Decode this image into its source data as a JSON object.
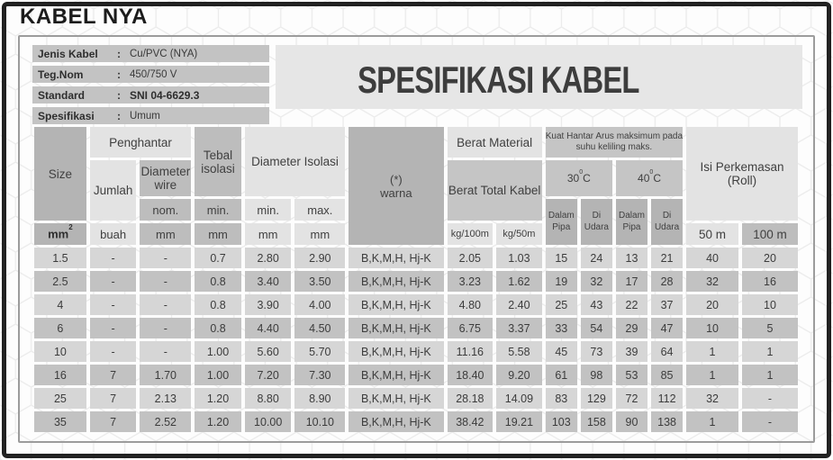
{
  "title": "KABEL NYA",
  "spec_title": "SPESIFIKASI KABEL",
  "info_panel": {
    "colon": ":",
    "rows": [
      {
        "label": "Jenis Kabel",
        "value": "Cu/PVC (NYA)"
      },
      {
        "label": "Teg.Nom",
        "value": "450/750 V"
      },
      {
        "label": "Standard",
        "value": "SNI 04-6629.3"
      },
      {
        "label": "Spesifikasi",
        "value": "Umum"
      }
    ]
  },
  "table": {
    "header": {
      "size": "Size",
      "penghantar": "Penghantar",
      "jumlah": "Jumlah",
      "diameter_wire": "Diameter wire",
      "nom": "nom.",
      "tebal_isolasi": "Tebal isolasi",
      "min_tebal": "min.",
      "diameter_isolasi": "Diameter Isolasi",
      "min_diameter": "min.",
      "max_diameter": "max.",
      "warna_mark": "(*)",
      "warna_label": "warna",
      "berat_material": "Berat Material",
      "berat_total_kabel": "Berat Total Kabel",
      "kuat_hantar_arus": "Kuat Hantar Arus maksimum pada suhu keliling maks.",
      "temp_30": "30",
      "temp_40": "40",
      "deg_mark": "0",
      "deg_unit": "C",
      "dalam_pipa": "Dalam Pipa",
      "di_udara": "Di Udara",
      "isi_perkemasan": "Isi Perkemasan (Roll)"
    },
    "units": {
      "size_base": "mm",
      "size_sup": "2",
      "jumlah": "buah",
      "mm": "mm",
      "kg_100": "kg/100m",
      "kg_50": "kg/50m",
      "roll_50": "50 m",
      "roll_100": "100 m"
    },
    "rows": [
      [
        "1.5",
        "-",
        "-",
        "0.7",
        "2.80",
        "2.90",
        "B,K,M,H, Hj-K",
        "2.05",
        "1.03",
        "15",
        "24",
        "13",
        "21",
        "40",
        "20"
      ],
      [
        "2.5",
        "-",
        "-",
        "0.8",
        "3.40",
        "3.50",
        "B,K,M,H, Hj-K",
        "3.23",
        "1.62",
        "19",
        "32",
        "17",
        "28",
        "32",
        "16"
      ],
      [
        "4",
        "-",
        "-",
        "0.8",
        "3.90",
        "4.00",
        "B,K,M,H, Hj-K",
        "4.80",
        "2.40",
        "25",
        "43",
        "22",
        "37",
        "20",
        "10"
      ],
      [
        "6",
        "-",
        "-",
        "0.8",
        "4.40",
        "4.50",
        "B,K,M,H, Hj-K",
        "6.75",
        "3.37",
        "33",
        "54",
        "29",
        "47",
        "10",
        "5"
      ],
      [
        "10",
        "-",
        "-",
        "1.00",
        "5.60",
        "5.70",
        "B,K,M,H, Hj-K",
        "11.16",
        "5.58",
        "45",
        "73",
        "39",
        "64",
        "1",
        "1"
      ],
      [
        "16",
        "7",
        "1.70",
        "1.00",
        "7.20",
        "7.30",
        "B,K,M,H, Hj-K",
        "18.40",
        "9.20",
        "61",
        "98",
        "53",
        "85",
        "1",
        "1"
      ],
      [
        "25",
        "7",
        "2.13",
        "1.20",
        "8.80",
        "8.90",
        "B,K,M,H, Hj-K",
        "28.18",
        "14.09",
        "83",
        "129",
        "72",
        "112",
        "32",
        "-"
      ],
      [
        "35",
        "7",
        "2.52",
        "1.20",
        "10.00",
        "10.10",
        "B,K,M,H, Hj-K",
        "38.42",
        "19.21",
        "103",
        "158",
        "90",
        "138",
        "1",
        "-"
      ]
    ]
  },
  "colors": {
    "outer_border": "#212121",
    "panel_border": "#9c9c9c",
    "info_bar": "#c3c3c3",
    "spec_box": "#e6e6e6",
    "cell_light": "#e3e3e3",
    "cell_mid": "#bdbdbd",
    "cell_gray": "#c5c5c5",
    "cell_dark": "#b4b4b4",
    "row_light": "#d6d6d6",
    "row_dark": "#c2c2c2"
  }
}
